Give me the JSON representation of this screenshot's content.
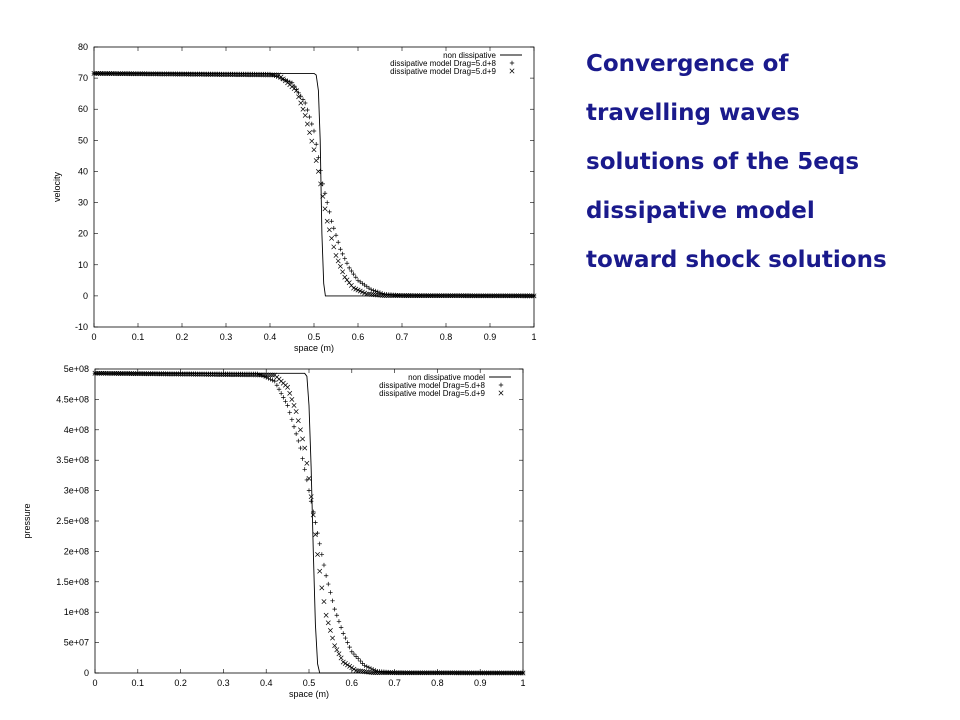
{
  "caption": {
    "lines": [
      "Convergence of",
      "travelling waves",
      "solutions of the 5eqs",
      "dissipative model",
      "toward shock solutions"
    ],
    "color": "#1a1a8c"
  },
  "chart_data": [
    {
      "type": "line",
      "xlabel": "space (m)",
      "ylabel": "velocity",
      "xlim": [
        0,
        1
      ],
      "ylim": [
        -10,
        80
      ],
      "grid": false,
      "legend_position": "top-right",
      "x_ticks": [
        "0",
        "0.1",
        "0.2",
        "0.3",
        "0.4",
        "0.5",
        "0.6",
        "0.7",
        "0.8",
        "0.9",
        "1"
      ],
      "y_ticks": [
        "-10",
        "0",
        "10",
        "20",
        "30",
        "40",
        "50",
        "60",
        "70",
        "80"
      ],
      "series": [
        {
          "name": "non dissipative",
          "style": "line",
          "x": [
            0,
            0.5,
            0.505,
            0.51,
            0.514,
            0.518,
            0.522,
            0.526,
            1.0
          ],
          "y": [
            71.5,
            71.5,
            71.0,
            66.0,
            50.0,
            20.0,
            4.0,
            0.0,
            0.0
          ]
        },
        {
          "name": "dissipative model Drag=5.d+8",
          "style": "plus",
          "x": [
            0,
            0.4,
            0.45,
            0.48,
            0.5,
            0.52,
            0.54,
            0.56,
            0.58,
            0.6,
            0.63,
            0.66,
            0.7,
            1.0
          ],
          "y": [
            71.5,
            71.3,
            68.5,
            62.0,
            53.0,
            36.0,
            24.0,
            15.0,
            9.0,
            5.0,
            2.0,
            0.6,
            0.1,
            0.0
          ]
        },
        {
          "name": "dissipative model Drag=5.d+9",
          "style": "cross",
          "x": [
            0,
            0.42,
            0.46,
            0.48,
            0.5,
            0.51,
            0.52,
            0.53,
            0.55,
            0.57,
            0.59,
            0.62,
            0.66,
            1.0
          ],
          "y": [
            71.5,
            71.0,
            66.0,
            58.0,
            47.0,
            40.0,
            32.0,
            24.0,
            13.0,
            6.0,
            2.5,
            0.6,
            0.1,
            0.0
          ]
        }
      ]
    },
    {
      "type": "line",
      "xlabel": "space (m)",
      "ylabel": "pressure",
      "xlim": [
        0,
        1
      ],
      "ylim": [
        0,
        500000000
      ],
      "grid": false,
      "legend_position": "top-right",
      "x_ticks": [
        "0",
        "0.1",
        "0.2",
        "0.3",
        "0.4",
        "0.5",
        "0.6",
        "0.7",
        "0.8",
        "0.9",
        "1"
      ],
      "y_ticks": [
        "0",
        "5e+07",
        "1e+08",
        "1.5e+08",
        "2e+08",
        "2.5e+08",
        "3e+08",
        "3.5e+08",
        "4e+08",
        "4.5e+08",
        "5e+08"
      ],
      "series": [
        {
          "name": "non dissipative model",
          "style": "line",
          "x": [
            0,
            0.49,
            0.495,
            0.5,
            0.505,
            0.51,
            0.515,
            0.52,
            0.525,
            1.0
          ],
          "y": [
            493000000,
            493000000,
            488000000,
            440000000,
            340000000,
            200000000,
            80000000,
            15000000,
            0,
            0
          ]
        },
        {
          "name": "dissipative model Drag=5.d+8",
          "style": "plus",
          "x": [
            0,
            0.38,
            0.42,
            0.45,
            0.48,
            0.5,
            0.52,
            0.54,
            0.56,
            0.58,
            0.6,
            0.63,
            0.66,
            0.7,
            1.0
          ],
          "y": [
            493000000,
            492000000,
            480000000,
            440000000,
            370000000,
            300000000,
            230000000,
            160000000,
            105000000,
            65000000,
            35000000,
            12000000,
            3000000,
            500000,
            0
          ]
        },
        {
          "name": "dissipative model Drag=5.d+9",
          "style": "cross",
          "x": [
            0,
            0.42,
            0.45,
            0.47,
            0.49,
            0.5,
            0.51,
            0.52,
            0.53,
            0.54,
            0.56,
            0.58,
            0.61,
            0.65,
            1.0
          ],
          "y": [
            493000000,
            490000000,
            470000000,
            430000000,
            370000000,
            320000000,
            260000000,
            195000000,
            140000000,
            95000000,
            45000000,
            18000000,
            4000000,
            500000,
            0
          ]
        }
      ]
    }
  ]
}
